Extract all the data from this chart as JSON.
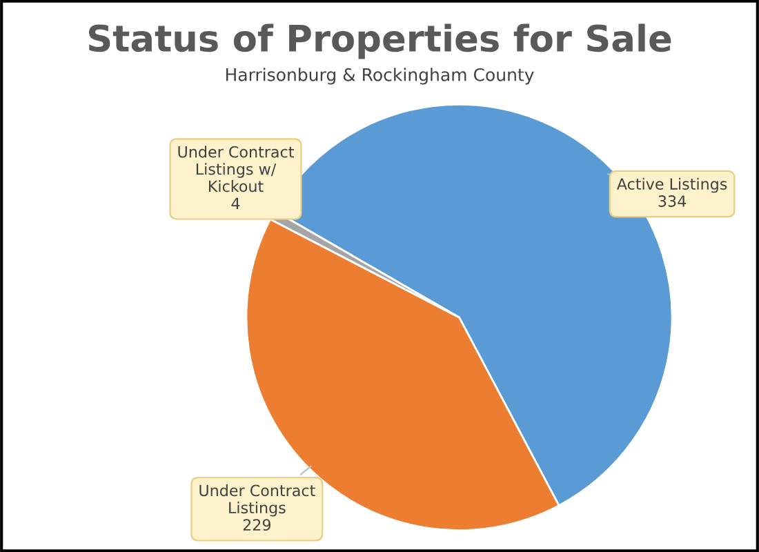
{
  "chart_data": {
    "type": "pie",
    "title": "Status of Properties for Sale",
    "subtitle": "Harrisonburg & Rockingham County",
    "categories": [
      "Active Listings",
      "Under Contract\nListings",
      "Under Contract\nListings w/\nKickout"
    ],
    "values": [
      334,
      229,
      4
    ],
    "colors": [
      "#5b9bd5",
      "#ed7d31",
      "#a5a5a5"
    ],
    "data_labels": true,
    "legend": false
  }
}
